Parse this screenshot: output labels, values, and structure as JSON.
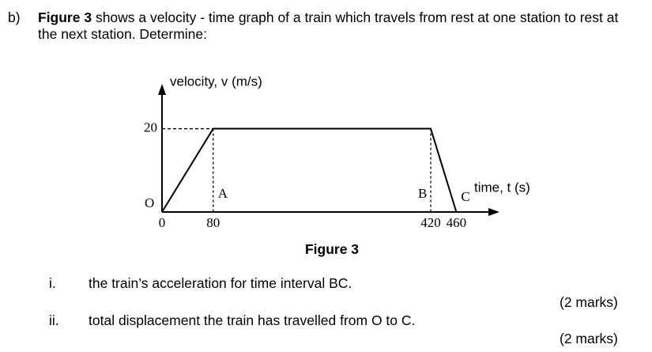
{
  "question": {
    "label": "b)",
    "bold": "Figure 3",
    "text": " shows a velocity - time graph of a train which travels from rest at one station to rest at the next station. Determine:"
  },
  "chart_data": {
    "type": "line",
    "ylabel": "velocity, v (m/s)",
    "xlabel": "time, t (s)",
    "x": [
      0,
      80,
      420,
      460
    ],
    "values": [
      0,
      20,
      20,
      0
    ],
    "point_labels": [
      "O",
      "A",
      "B",
      "C"
    ],
    "xlim": [
      0,
      520
    ],
    "ylim": [
      0,
      30
    ],
    "xticks": [
      0,
      80,
      420,
      460
    ],
    "yticks": [
      20
    ],
    "color": "#000000"
  },
  "caption": "Figure 3",
  "items": [
    {
      "label": "i.",
      "text": "the train’s acceleration for time interval BC.",
      "marks": "(2 marks)"
    },
    {
      "label": "ii.",
      "text": "total displacement the train has travelled from O to C.",
      "marks": "(2 marks)"
    }
  ]
}
